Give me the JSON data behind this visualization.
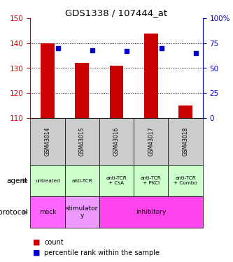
{
  "title": "GDS1338 / 107444_at",
  "samples": [
    "GSM43014",
    "GSM43015",
    "GSM43016",
    "GSM43017",
    "GSM43018"
  ],
  "count_values": [
    140,
    132,
    131,
    144,
    115
  ],
  "count_base": 110,
  "percentile_values": [
    70,
    68,
    67,
    70,
    65
  ],
  "ylim_left": [
    110,
    150
  ],
  "yticks_left": [
    110,
    120,
    130,
    140,
    150
  ],
  "ylim_right": [
    0,
    100
  ],
  "yticks_right": [
    0,
    25,
    50,
    75,
    100
  ],
  "bar_color": "#cc0000",
  "square_color": "#0000cc",
  "agent_labels": [
    "untreated",
    "anti-TCR",
    "anti-TCR\n+ CsA",
    "anti-TCR\n+ PKCi",
    "anti-TCR\n+ Combo"
  ],
  "agent_bg": "#ccffcc",
  "protocol_mock_bg": "#ff66ff",
  "protocol_stim_bg": "#ee99ff",
  "protocol_inhib_bg": "#ff44ee",
  "sample_bg": "#cccccc",
  "left_tick_color": "#cc0000",
  "right_tick_color": "#0000cc",
  "legend_count_color": "#cc0000",
  "legend_pct_color": "#0000cc",
  "proto_spans": [
    [
      0,
      1,
      "mock"
    ],
    [
      1,
      2,
      "stimulator\ny"
    ],
    [
      2,
      5,
      "inhibitory"
    ]
  ]
}
